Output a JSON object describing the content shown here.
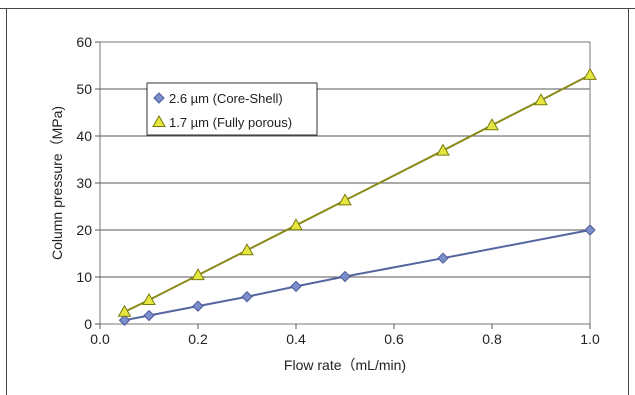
{
  "chart_data": {
    "type": "line",
    "title": "",
    "xlabel": "Flow rate（mL/min)",
    "ylabel": "Column pressure（MPa)",
    "xlim": [
      0.0,
      1.0
    ],
    "ylim": [
      0,
      60
    ],
    "x_ticks": [
      "0.0",
      "0.2",
      "0.4",
      "0.6",
      "0.8",
      "1.0"
    ],
    "y_ticks": [
      "0",
      "10",
      "20",
      "30",
      "40",
      "50",
      "60"
    ],
    "grid": {
      "horizontal": true,
      "vertical": false
    },
    "legend_position": "top-left",
    "series": [
      {
        "name": "2.6 µm (Core-Shell)",
        "marker": "diamond",
        "color": "#7b8fcc",
        "edge_color": "#4a5a9a",
        "line_color": "#55659f",
        "points": [
          {
            "x": 0.05,
            "y": 0.8
          },
          {
            "x": 0.1,
            "y": 1.8
          },
          {
            "x": 0.2,
            "y": 3.8
          },
          {
            "x": 0.3,
            "y": 5.8
          },
          {
            "x": 0.4,
            "y": 8.0
          },
          {
            "x": 0.5,
            "y": 10.1
          },
          {
            "x": 0.7,
            "y": 14.0
          },
          {
            "x": 1.0,
            "y": 20.0
          }
        ]
      },
      {
        "name": "1.7 µm (Fully porous)",
        "marker": "triangle",
        "color": "#e6e640",
        "edge_color": "#7a7a10",
        "line_color": "#8a8a1a",
        "points": [
          {
            "x": 0.05,
            "y": 2.6
          },
          {
            "x": 0.1,
            "y": 5.1
          },
          {
            "x": 0.2,
            "y": 10.4
          },
          {
            "x": 0.3,
            "y": 15.7
          },
          {
            "x": 0.4,
            "y": 21.0
          },
          {
            "x": 0.5,
            "y": 26.3
          },
          {
            "x": 0.7,
            "y": 36.9
          },
          {
            "x": 0.8,
            "y": 42.3
          },
          {
            "x": 0.9,
            "y": 47.6
          },
          {
            "x": 1.0,
            "y": 53.0
          }
        ]
      }
    ]
  }
}
